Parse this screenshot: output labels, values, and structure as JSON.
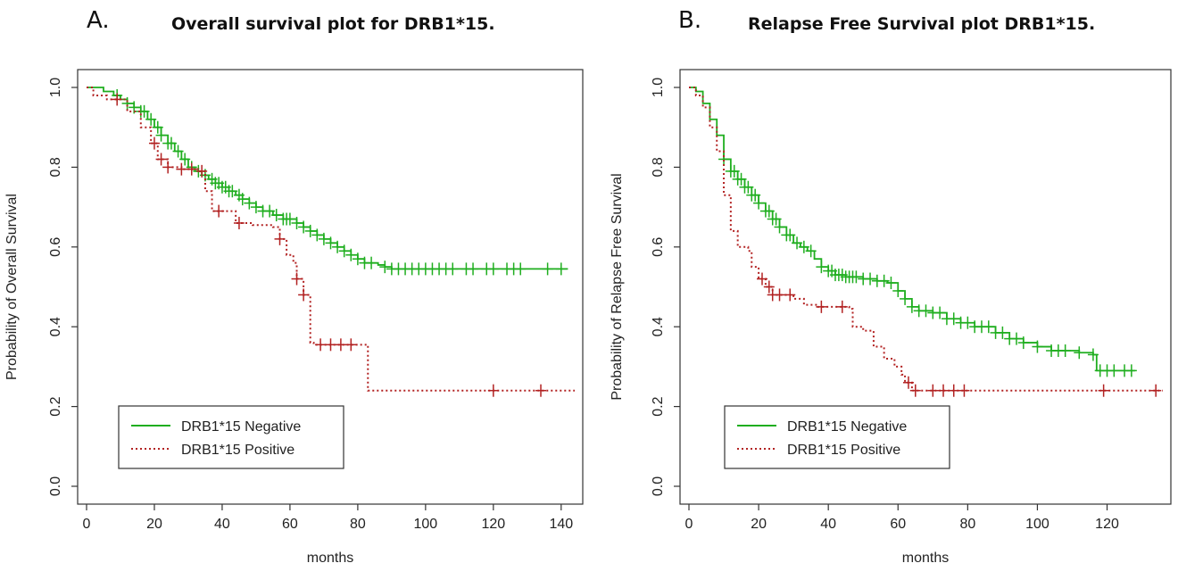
{
  "colors": {
    "negative": "#1fae1f",
    "positive": "#b22222",
    "axis": "#333333"
  },
  "chart_data": [
    {
      "type": "line",
      "panel_label": "A.",
      "title": "Overall survival plot for DRB1*15.",
      "xlabel": "months",
      "ylabel": "Probability of Overall Survival",
      "xlim": [
        0,
        144
      ],
      "ylim": [
        0,
        1
      ],
      "x_ticks": [
        "0",
        "20",
        "40",
        "60",
        "80",
        "100",
        "120",
        "140"
      ],
      "y_ticks": [
        "0.0",
        "0.2",
        "0.4",
        "0.6",
        "0.8",
        "1.0"
      ],
      "legend": {
        "position": "bottom-left"
      },
      "series": [
        {
          "name": "DRB1*15 Negative",
          "style": "solid",
          "steps": [
            [
              0,
              1.0
            ],
            [
              3,
              1.0
            ],
            [
              5,
              0.99
            ],
            [
              8,
              0.98
            ],
            [
              10,
              0.97
            ],
            [
              12,
              0.96
            ],
            [
              14,
              0.95
            ],
            [
              16,
              0.94
            ],
            [
              18,
              0.92
            ],
            [
              20,
              0.9
            ],
            [
              22,
              0.88
            ],
            [
              24,
              0.86
            ],
            [
              26,
              0.84
            ],
            [
              28,
              0.82
            ],
            [
              30,
              0.8
            ],
            [
              32,
              0.79
            ],
            [
              34,
              0.78
            ],
            [
              36,
              0.77
            ],
            [
              38,
              0.76
            ],
            [
              40,
              0.75
            ],
            [
              42,
              0.74
            ],
            [
              44,
              0.73
            ],
            [
              46,
              0.72
            ],
            [
              48,
              0.71
            ],
            [
              50,
              0.7
            ],
            [
              52,
              0.69
            ],
            [
              55,
              0.68
            ],
            [
              58,
              0.67
            ],
            [
              62,
              0.66
            ],
            [
              64,
              0.65
            ],
            [
              66,
              0.64
            ],
            [
              68,
              0.63
            ],
            [
              70,
              0.62
            ],
            [
              72,
              0.61
            ],
            [
              74,
              0.6
            ],
            [
              76,
              0.59
            ],
            [
              78,
              0.58
            ],
            [
              80,
              0.57
            ],
            [
              82,
              0.56
            ],
            [
              86,
              0.555
            ],
            [
              88,
              0.55
            ],
            [
              90,
              0.545
            ],
            [
              142,
              0.545
            ]
          ],
          "censor": [
            9,
            12,
            14,
            16,
            17,
            19,
            21,
            22,
            24,
            25,
            27,
            29,
            31,
            33,
            35,
            37,
            38,
            39,
            40,
            41,
            42,
            43,
            45,
            46,
            48,
            50,
            52,
            54,
            56,
            58,
            59,
            60,
            62,
            64,
            66,
            68,
            70,
            72,
            74,
            76,
            78,
            80,
            82,
            84,
            88,
            90,
            92,
            94,
            96,
            98,
            100,
            102,
            104,
            106,
            108,
            112,
            114,
            118,
            120,
            124,
            126,
            128,
            136,
            140
          ]
        },
        {
          "name": "DRB1*15 Positive",
          "style": "dotted",
          "steps": [
            [
              0,
              1.0
            ],
            [
              2,
              0.98
            ],
            [
              6,
              0.97
            ],
            [
              12,
              0.94
            ],
            [
              16,
              0.9
            ],
            [
              19,
              0.86
            ],
            [
              21,
              0.82
            ],
            [
              24,
              0.8
            ],
            [
              28,
              0.795
            ],
            [
              33,
              0.79
            ],
            [
              35,
              0.74
            ],
            [
              37,
              0.69
            ],
            [
              44,
              0.66
            ],
            [
              49,
              0.655
            ],
            [
              55,
              0.65
            ],
            [
              57,
              0.62
            ],
            [
              59,
              0.58
            ],
            [
              61,
              0.56
            ],
            [
              62,
              0.52
            ],
            [
              64,
              0.48
            ],
            [
              66,
              0.36
            ],
            [
              67,
              0.355
            ],
            [
              82,
              0.355
            ],
            [
              83,
              0.24
            ],
            [
              144,
              0.24
            ]
          ],
          "censor": [
            9,
            20,
            22,
            24,
            28,
            31,
            34,
            39,
            45,
            57,
            62,
            64,
            69,
            72,
            75,
            78,
            120,
            134
          ]
        }
      ]
    },
    {
      "type": "line",
      "panel_label": "B.",
      "title": "Relapse Free Survival plot DRB1*15.",
      "xlabel": "months",
      "ylabel": "Probability of Relapse Free Survival",
      "xlim": [
        0,
        136
      ],
      "ylim": [
        0,
        1
      ],
      "x_ticks": [
        "0",
        "20",
        "40",
        "60",
        "80",
        "100",
        "120"
      ],
      "y_ticks": [
        "0.0",
        "0.2",
        "0.4",
        "0.6",
        "0.8",
        "1.0"
      ],
      "legend": {
        "position": "bottom-left"
      },
      "series": [
        {
          "name": "DRB1*15 Negative",
          "style": "solid",
          "steps": [
            [
              0,
              1.0
            ],
            [
              2,
              0.99
            ],
            [
              4,
              0.96
            ],
            [
              6,
              0.92
            ],
            [
              8,
              0.88
            ],
            [
              10,
              0.82
            ],
            [
              12,
              0.79
            ],
            [
              14,
              0.77
            ],
            [
              16,
              0.75
            ],
            [
              18,
              0.73
            ],
            [
              20,
              0.71
            ],
            [
              22,
              0.69
            ],
            [
              24,
              0.67
            ],
            [
              26,
              0.65
            ],
            [
              28,
              0.63
            ],
            [
              30,
              0.61
            ],
            [
              32,
              0.6
            ],
            [
              34,
              0.59
            ],
            [
              36,
              0.57
            ],
            [
              38,
              0.55
            ],
            [
              40,
              0.54
            ],
            [
              42,
              0.53
            ],
            [
              45,
              0.525
            ],
            [
              50,
              0.52
            ],
            [
              54,
              0.515
            ],
            [
              57,
              0.51
            ],
            [
              60,
              0.49
            ],
            [
              62,
              0.47
            ],
            [
              64,
              0.45
            ],
            [
              66,
              0.44
            ],
            [
              70,
              0.435
            ],
            [
              74,
              0.42
            ],
            [
              78,
              0.41
            ],
            [
              82,
              0.4
            ],
            [
              88,
              0.385
            ],
            [
              92,
              0.37
            ],
            [
              96,
              0.36
            ],
            [
              100,
              0.35
            ],
            [
              104,
              0.34
            ],
            [
              112,
              0.335
            ],
            [
              116,
              0.33
            ],
            [
              117,
              0.29
            ],
            [
              128,
              0.29
            ]
          ],
          "censor": [
            10,
            12,
            13,
            14,
            15,
            16,
            17,
            18,
            19,
            20,
            22,
            23,
            24,
            25,
            26,
            28,
            29,
            31,
            33,
            35,
            38,
            40,
            41,
            42,
            43,
            44,
            45,
            46,
            47,
            48,
            50,
            52,
            54,
            56,
            58,
            60,
            62,
            64,
            66,
            68,
            70,
            72,
            74,
            76,
            78,
            80,
            82,
            84,
            86,
            88,
            90,
            92,
            94,
            96,
            100,
            104,
            106,
            108,
            112,
            116,
            118,
            120,
            122,
            125,
            127
          ]
        },
        {
          "name": "DRB1*15 Positive",
          "style": "dotted",
          "steps": [
            [
              0,
              1.0
            ],
            [
              2,
              0.98
            ],
            [
              4,
              0.95
            ],
            [
              6,
              0.9
            ],
            [
              8,
              0.84
            ],
            [
              10,
              0.73
            ],
            [
              12,
              0.64
            ],
            [
              14,
              0.6
            ],
            [
              17,
              0.59
            ],
            [
              18,
              0.55
            ],
            [
              20,
              0.52
            ],
            [
              22,
              0.5
            ],
            [
              24,
              0.48
            ],
            [
              30,
              0.47
            ],
            [
              33,
              0.455
            ],
            [
              37,
              0.45
            ],
            [
              46,
              0.445
            ],
            [
              47,
              0.4
            ],
            [
              50,
              0.39
            ],
            [
              53,
              0.35
            ],
            [
              56,
              0.32
            ],
            [
              59,
              0.3
            ],
            [
              61,
              0.28
            ],
            [
              62,
              0.26
            ],
            [
              64,
              0.24
            ],
            [
              136,
              0.24
            ]
          ],
          "censor": [
            21,
            23,
            24,
            26,
            29,
            38,
            44,
            63,
            65,
            70,
            73,
            76,
            79,
            119,
            134
          ]
        }
      ]
    }
  ]
}
